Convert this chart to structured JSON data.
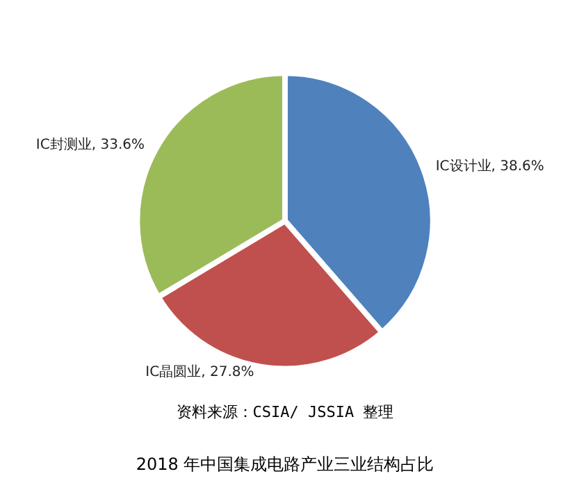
{
  "chart_data": {
    "type": "pie",
    "categories": [
      "IC设计业",
      "IC晶圆业",
      "IC封测业"
    ],
    "values": [
      38.6,
      27.8,
      33.6
    ],
    "value_labels": [
      "38.6%",
      "27.8%",
      "33.6%"
    ],
    "colors": [
      "#4f81bd",
      "#c0504d",
      "#9bbb59"
    ],
    "annotations": [
      "资料来源：CSIA/ JSSIA 整理"
    ],
    "title": "2018 年中国集成电路产业三业结构占比",
    "legend": false
  }
}
